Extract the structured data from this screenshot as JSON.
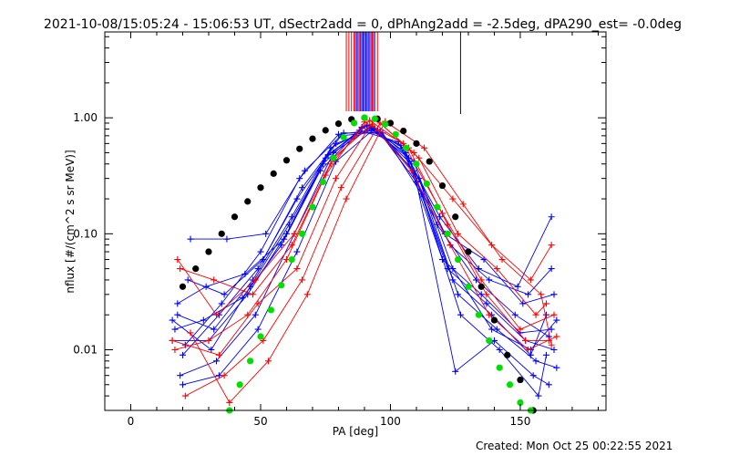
{
  "chart_data": {
    "type": "line",
    "title": "2021-10-08/15:05:24 - 15:06:53 UT, dSectr2add = 0, dPhAng2add = -2.5deg, dPA290_est= -0.0deg",
    "xlabel": "PA [deg]",
    "ylabel": "nflux [#/(cm^2 s sr MeV)]",
    "footer": "Created: Mon Oct 25 00:22:55 2021",
    "xlim": [
      -10,
      183
    ],
    "ylim": [
      0.003,
      5.5
    ],
    "yscale": "log",
    "x_ticks": [
      0,
      50,
      100,
      150
    ],
    "x_tick_labels": [
      "0",
      "50",
      "100",
      "150"
    ],
    "y_ticks": [
      0.01,
      0.1,
      1.0
    ],
    "y_tick_labels": [
      "0.01",
      "0.10",
      "1.00"
    ],
    "colors": {
      "red": "#ff0000",
      "blue": "#0000ff",
      "black_fit": "#000000",
      "green_fit": "#00e000"
    },
    "series": [
      {
        "color": "black",
        "marker": "filled-circle",
        "x": [
          20,
          25,
          30,
          35,
          40,
          45,
          50,
          55,
          60,
          65,
          70,
          75,
          80,
          85,
          90,
          95,
          100,
          105,
          110,
          115,
          120,
          125,
          130,
          135,
          140,
          145,
          150,
          155
        ],
        "y": [
          0.035,
          0.05,
          0.07,
          0.1,
          0.14,
          0.19,
          0.25,
          0.33,
          0.43,
          0.54,
          0.66,
          0.78,
          0.89,
          0.97,
          1.0,
          0.98,
          0.9,
          0.77,
          0.6,
          0.42,
          0.26,
          0.14,
          0.07,
          0.035,
          0.018,
          0.009,
          0.0055,
          0.003
        ]
      },
      {
        "color": "green",
        "marker": "filled-circle",
        "x": [
          38,
          42,
          46,
          50,
          54,
          58,
          62,
          66,
          70,
          74,
          78,
          82,
          86,
          90,
          94,
          98,
          102,
          106,
          110,
          114,
          118,
          122,
          126,
          130,
          134,
          138,
          142,
          146,
          150,
          154
        ],
        "y": [
          0.003,
          0.005,
          0.008,
          0.013,
          0.022,
          0.036,
          0.06,
          0.1,
          0.17,
          0.28,
          0.45,
          0.68,
          0.9,
          1.0,
          0.98,
          0.88,
          0.72,
          0.55,
          0.4,
          0.27,
          0.17,
          0.1,
          0.06,
          0.035,
          0.02,
          0.012,
          0.007,
          0.005,
          0.0035,
          0.003
        ]
      },
      {
        "color": "blue",
        "marker": "plus",
        "x": [
          16,
          30,
          45,
          60,
          75,
          90,
          105,
          120,
          135,
          150,
          162
        ],
        "y": [
          0.012,
          0.012,
          0.03,
          0.1,
          0.45,
          0.85,
          0.55,
          0.06,
          0.03,
          0.014,
          0.015
        ]
      },
      {
        "color": "blue",
        "marker": "plus",
        "x": [
          18,
          32,
          47,
          62,
          77,
          92,
          107,
          122,
          137,
          152,
          163
        ],
        "y": [
          0.02,
          0.015,
          0.04,
          0.14,
          0.55,
          0.82,
          0.45,
          0.05,
          0.025,
          0.012,
          0.01
        ]
      },
      {
        "color": "blue",
        "marker": "plus",
        "x": [
          20,
          34,
          49,
          64,
          79,
          94,
          109,
          124,
          139,
          154,
          160
        ],
        "y": [
          0.009,
          0.02,
          0.05,
          0.2,
          0.6,
          0.8,
          0.35,
          0.04,
          0.02,
          0.009,
          0.02
        ]
      },
      {
        "color": "blue",
        "marker": "plus",
        "x": [
          17,
          28,
          43,
          58,
          73,
          88,
          103,
          118,
          133,
          148,
          161
        ],
        "y": [
          0.015,
          0.018,
          0.028,
          0.08,
          0.35,
          0.78,
          0.62,
          0.12,
          0.04,
          0.02,
          0.013
        ]
      },
      {
        "color": "blue",
        "marker": "plus",
        "x": [
          22,
          36,
          51,
          66,
          81,
          96,
          111,
          126,
          141,
          156,
          164
        ],
        "y": [
          0.04,
          0.03,
          0.06,
          0.25,
          0.7,
          0.76,
          0.3,
          0.03,
          0.015,
          0.008,
          0.007
        ]
      },
      {
        "color": "blue",
        "marker": "plus",
        "x": [
          19,
          33,
          48,
          63,
          78,
          93,
          108,
          123,
          138,
          153,
          162
        ],
        "y": [
          0.006,
          0.008,
          0.02,
          0.1,
          0.5,
          0.84,
          0.4,
          0.08,
          0.04,
          0.03,
          0.05
        ]
      },
      {
        "color": "blue",
        "marker": "plus",
        "x": [
          21,
          35,
          50,
          65,
          80,
          95,
          110,
          125,
          140,
          155,
          161
        ],
        "y": [
          0.011,
          0.025,
          0.07,
          0.3,
          0.72,
          0.79,
          0.28,
          0.0065,
          0.012,
          0.006,
          0.005
        ]
      },
      {
        "color": "blue",
        "marker": "plus",
        "x": [
          16,
          31,
          46,
          61,
          76,
          91,
          106,
          121,
          136,
          151,
          163
        ],
        "y": [
          0.018,
          0.01,
          0.035,
          0.12,
          0.48,
          0.86,
          0.5,
          0.1,
          0.06,
          0.025,
          0.03
        ]
      },
      {
        "color": "blue",
        "marker": "plus",
        "x": [
          23,
          37,
          52,
          67,
          82,
          97,
          112,
          127,
          142,
          157,
          160
        ],
        "y": [
          0.09,
          0.09,
          0.1,
          0.35,
          0.74,
          0.74,
          0.22,
          0.02,
          0.01,
          0.004,
          0.009
        ]
      },
      {
        "color": "blue",
        "marker": "plus",
        "x": [
          18,
          29,
          44,
          59,
          74,
          89,
          104,
          119,
          134,
          149,
          162
        ],
        "y": [
          0.025,
          0.035,
          0.045,
          0.09,
          0.4,
          0.83,
          0.58,
          0.14,
          0.05,
          0.035,
          0.14
        ]
      },
      {
        "color": "blue",
        "marker": "plus",
        "x": [
          20,
          34,
          49,
          64,
          79,
          94,
          109,
          124,
          139,
          154,
          164
        ],
        "y": [
          0.005,
          0.006,
          0.015,
          0.07,
          0.42,
          0.81,
          0.42,
          0.05,
          0.015,
          0.01,
          0.018
        ]
      },
      {
        "color": "red",
        "marker": "plus",
        "x": [
          17,
          30,
          45,
          60,
          75,
          90,
          105,
          120,
          135,
          150,
          163
        ],
        "y": [
          0.01,
          0.012,
          0.02,
          0.06,
          0.32,
          0.92,
          0.6,
          0.15,
          0.04,
          0.015,
          0.02
        ]
      },
      {
        "color": "red",
        "marker": "plus",
        "x": [
          19,
          32,
          47,
          62,
          77,
          92,
          107,
          122,
          137,
          152,
          161
        ],
        "y": [
          0.05,
          0.04,
          0.03,
          0.08,
          0.4,
          0.95,
          0.55,
          0.12,
          0.03,
          0.012,
          0.012
        ]
      },
      {
        "color": "red",
        "marker": "plus",
        "x": [
          16,
          34,
          49,
          64,
          79,
          94,
          109,
          124,
          139,
          154,
          162
        ],
        "y": [
          0.012,
          0.009,
          0.025,
          0.05,
          0.3,
          0.98,
          0.5,
          0.2,
          0.08,
          0.04,
          0.08
        ]
      },
      {
        "color": "red",
        "marker": "plus",
        "x": [
          21,
          36,
          51,
          66,
          81,
          96,
          111,
          126,
          141,
          156,
          160
        ],
        "y": [
          0.004,
          0.006,
          0.012,
          0.04,
          0.25,
          0.9,
          0.45,
          0.1,
          0.05,
          0.02,
          0.025
        ]
      },
      {
        "color": "red",
        "marker": "plus",
        "x": [
          18,
          33,
          48,
          63,
          78,
          93,
          108,
          123,
          138,
          153,
          164
        ],
        "y": [
          0.06,
          0.02,
          0.04,
          0.1,
          0.45,
          0.88,
          0.35,
          0.08,
          0.02,
          0.01,
          0.013
        ]
      },
      {
        "color": "red",
        "marker": "plus",
        "x": [
          23,
          38,
          53,
          68,
          83,
          98,
          113,
          128,
          143,
          158,
          162
        ],
        "y": [
          0.014,
          0.0035,
          0.008,
          0.03,
          0.2,
          0.93,
          0.55,
          0.18,
          0.06,
          0.03,
          0.011
        ]
      }
    ],
    "pa_marker_lines": [
      {
        "color": "red",
        "x": [
          83,
          84,
          85,
          86,
          87,
          88,
          92,
          93,
          94,
          95
        ]
      },
      {
        "color": "blue",
        "x": [
          86.5,
          87.5,
          88.5,
          89,
          89.5,
          90,
          90.5,
          91,
          91.5,
          92.5,
          93.5
        ]
      },
      {
        "color": "navy",
        "x": [
          127
        ]
      }
    ]
  }
}
